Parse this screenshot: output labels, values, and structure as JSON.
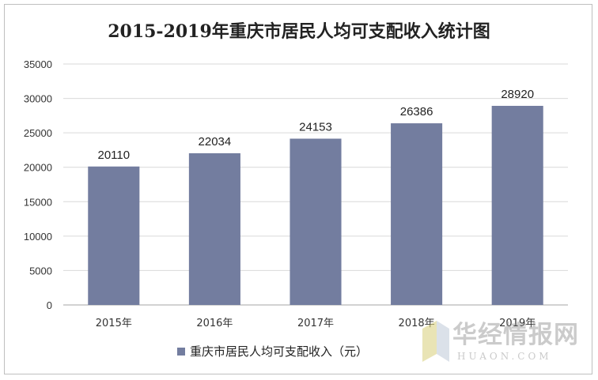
{
  "chart_data": {
    "type": "bar",
    "title": "2015-2019年重庆市居民人均可支配收入统计图",
    "categories": [
      "2015年",
      "2016年",
      "2017年",
      "2018年",
      "2019年"
    ],
    "series": [
      {
        "name": "重庆市居民人均可支配收入（元）",
        "values": [
          20110,
          22034,
          24153,
          26386,
          28920
        ]
      }
    ],
    "ylim": [
      0,
      35000
    ],
    "yticks": [
      0,
      5000,
      10000,
      15000,
      20000,
      25000,
      30000,
      35000
    ],
    "grid": true,
    "legend_position": "bottom",
    "bar_color": "#737d9f"
  },
  "watermark": {
    "text_cn": "华经情报网",
    "text_en": "HUAON.COM"
  }
}
